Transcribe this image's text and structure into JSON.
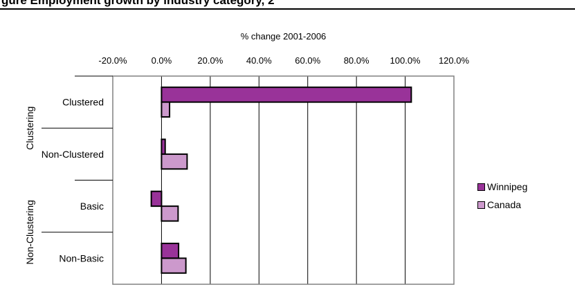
{
  "header": {
    "title": "gure  Employment growth by industry category, 2"
  },
  "chart_data": {
    "type": "bar",
    "orientation": "horizontal",
    "title": "% change 2001-2006",
    "groups": [
      {
        "label": "Clustering",
        "categories": [
          "Clustered",
          "Non-Clustered"
        ]
      },
      {
        "label": "Non-Clustering",
        "categories": [
          "Basic",
          "Non-Basic"
        ]
      }
    ],
    "categories": [
      "Clustered",
      "Non-Clustered",
      "Basic",
      "Non-Basic"
    ],
    "series": [
      {
        "name": "Winnipeg",
        "color": "#993399",
        "values": [
          102.5,
          1.5,
          -4.2,
          7.0
        ]
      },
      {
        "name": "Canada",
        "color": "#CC99CC",
        "values": [
          3.3,
          10.5,
          6.8,
          10.0
        ]
      }
    ],
    "xlim": [
      -20,
      120
    ],
    "xticks": [
      -20,
      0,
      20,
      40,
      60,
      80,
      100,
      120
    ],
    "tick_labels": [
      "-20.0%",
      "0.0%",
      "20.0%",
      "40.0%",
      "60.0%",
      "80.0%",
      "100.0%",
      "120.0%"
    ],
    "grid": true,
    "legend": "right"
  }
}
